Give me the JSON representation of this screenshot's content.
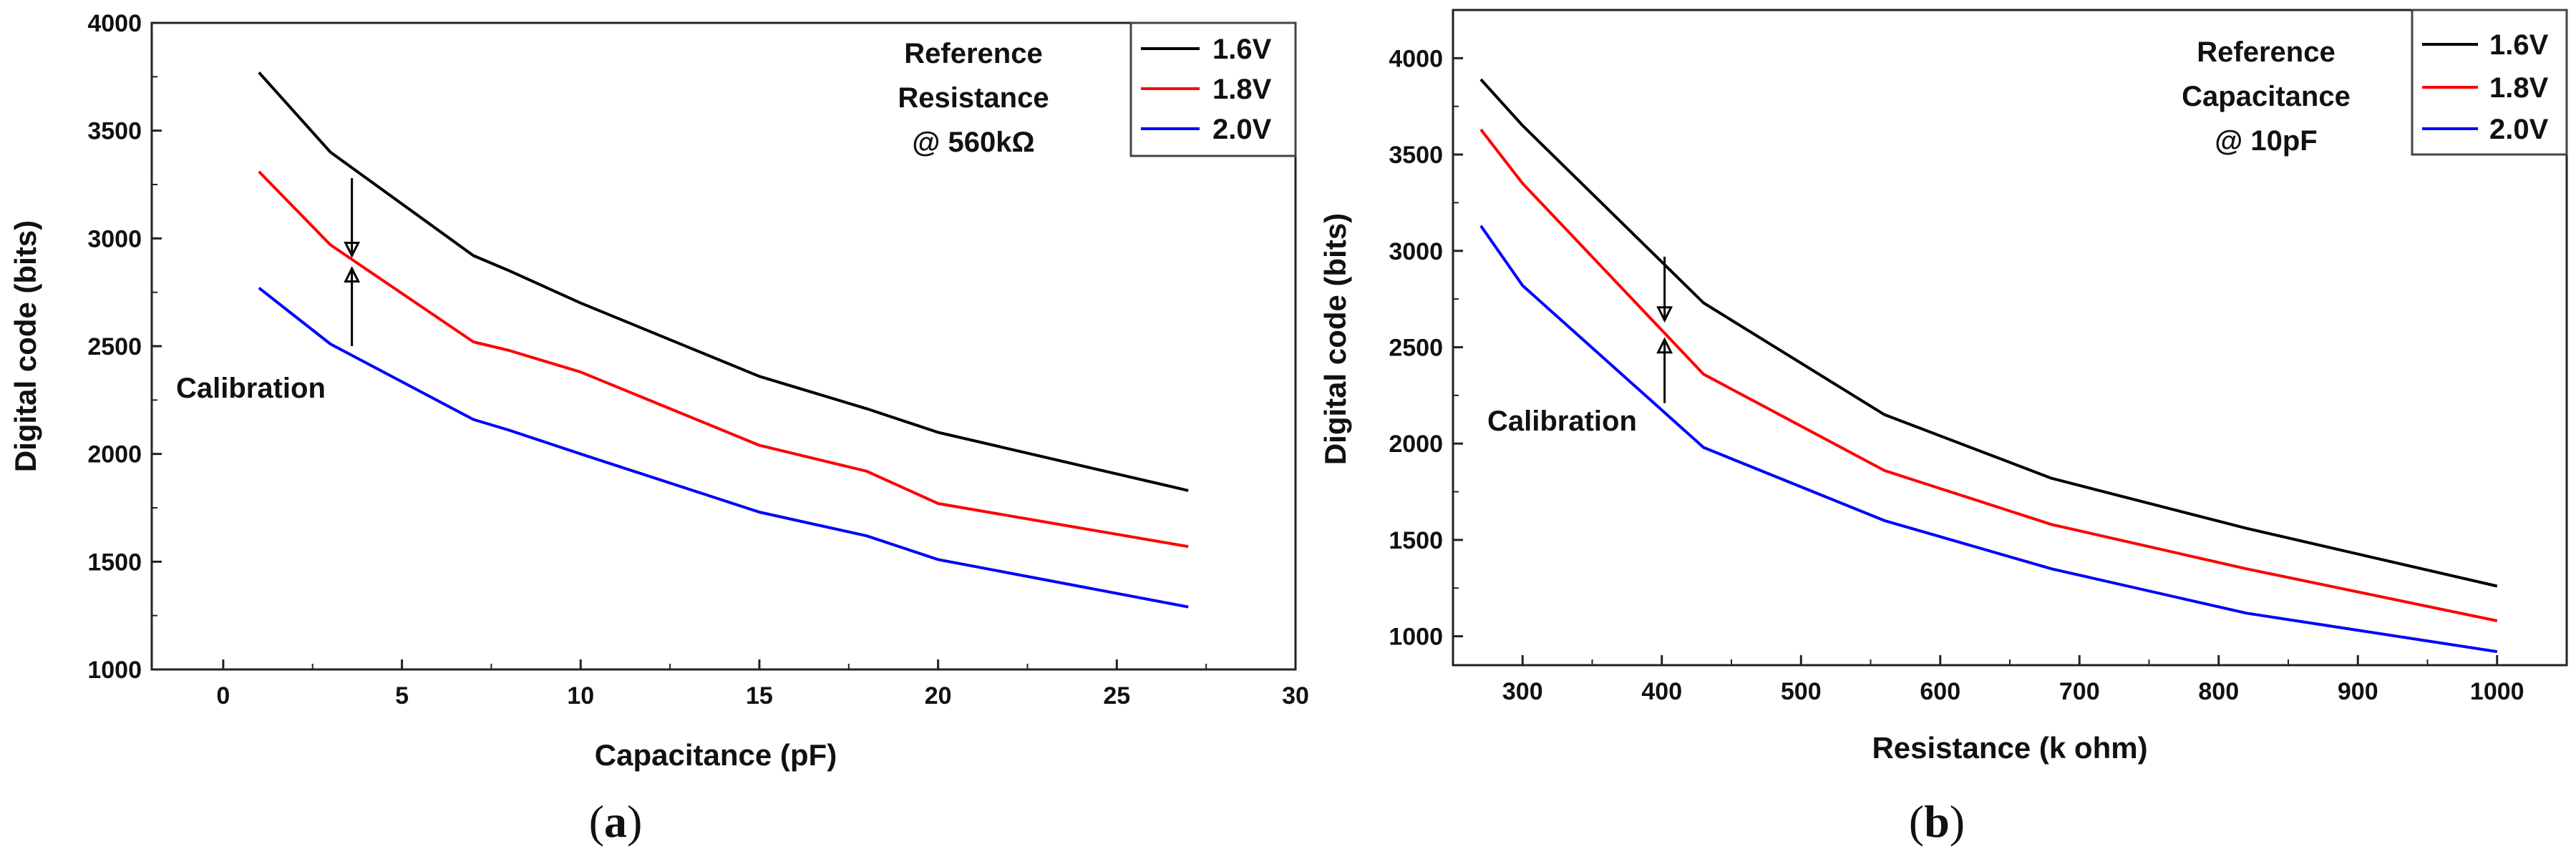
{
  "chart_data": [
    {
      "type": "line",
      "panel_label": "a",
      "xlabel": "Capacitance (pF)",
      "ylabel": "Digital code (bits)",
      "xlim": [
        -2,
        30
      ],
      "ylim": [
        1000,
        4000
      ],
      "xticks": [
        0,
        5,
        10,
        15,
        20,
        25,
        30
      ],
      "yticks": [
        1000,
        1500,
        2000,
        2500,
        3000,
        3500,
        4000
      ],
      "legend_position": "top-right",
      "series": [
        {
          "name": "1.6V",
          "color": "#000000",
          "x": [
            1,
            3,
            7,
            8,
            10,
            15,
            18,
            20,
            27
          ],
          "y": [
            3770,
            3400,
            2920,
            2850,
            2700,
            2360,
            2210,
            2100,
            1830
          ]
        },
        {
          "name": "1.8V",
          "color": "#ff0000",
          "x": [
            1,
            3,
            7,
            8,
            10,
            15,
            18,
            20,
            27
          ],
          "y": [
            3310,
            2970,
            2520,
            2480,
            2380,
            2040,
            1920,
            1770,
            1570
          ]
        },
        {
          "name": "2.0V",
          "color": "#0000ff",
          "x": [
            1,
            3,
            7,
            8,
            10,
            15,
            18,
            20,
            27
          ],
          "y": [
            2770,
            2510,
            2160,
            2110,
            2000,
            1730,
            1620,
            1510,
            1290
          ]
        }
      ],
      "annotations": {
        "reference_lines": [
          "Reference",
          "Resistance",
          "@ 560kΩ"
        ],
        "calibration": "Calibration"
      },
      "arrows": {
        "x": 3.6,
        "down_from": 3280,
        "down_to": 2920,
        "up_from": 2500,
        "up_to": 2860
      }
    },
    {
      "type": "line",
      "panel_label": "b",
      "xlabel": "Resistance (k ohm)",
      "ylabel": "Digital code (bits)",
      "xlim": [
        250,
        1050
      ],
      "ylim": [
        850,
        4250
      ],
      "xticks": [
        300,
        400,
        500,
        600,
        700,
        800,
        900,
        1000
      ],
      "yticks": [
        1000,
        1500,
        2000,
        2500,
        3000,
        3500,
        4000
      ],
      "legend_position": "top-right",
      "series": [
        {
          "name": "1.6V",
          "color": "#000000",
          "x": [
            270,
            300,
            430,
            560,
            680,
            820,
            1000
          ],
          "y": [
            3890,
            3650,
            2730,
            2150,
            1820,
            1560,
            1260
          ]
        },
        {
          "name": "1.8V",
          "color": "#ff0000",
          "x": [
            270,
            300,
            430,
            560,
            680,
            820,
            1000
          ],
          "y": [
            3630,
            3350,
            2360,
            1860,
            1580,
            1350,
            1080
          ]
        },
        {
          "name": "2.0V",
          "color": "#0000ff",
          "x": [
            270,
            300,
            430,
            560,
            680,
            820,
            1000
          ],
          "y": [
            3130,
            2820,
            1980,
            1600,
            1350,
            1120,
            920
          ]
        }
      ],
      "annotations": {
        "reference_lines": [
          "Reference",
          "Capacitance",
          "@ 10pF"
        ],
        "calibration": "Calibration"
      },
      "arrows": {
        "x": 402,
        "down_from": 2970,
        "down_to": 2640,
        "up_from": 2210,
        "up_to": 2540
      }
    }
  ]
}
